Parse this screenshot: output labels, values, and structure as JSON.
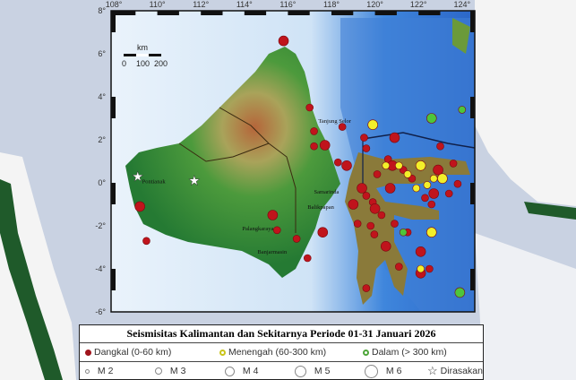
{
  "map": {
    "lon_ticks": [
      "108°",
      "110°",
      "112°",
      "114°",
      "116°",
      "118°",
      "120°",
      "122°",
      "124°"
    ],
    "lat_ticks": [
      "8°",
      "6°",
      "4°",
      "2°",
      "0°",
      "-2°",
      "-4°",
      "-6°"
    ],
    "scale_bar": {
      "unit": "km",
      "labels": [
        "0",
        "100",
        "200"
      ]
    },
    "colors": {
      "shallow": "#c0141c",
      "intermediate": "#f2ef2a",
      "deep": "#4ec53a",
      "sea": "#5b9be0",
      "land": "#2e8b3a"
    },
    "cities": [
      {
        "name": "Tanjung Selor",
        "lon": 117.4,
        "lat": 2.8
      },
      {
        "name": "Samarinda",
        "lon": 117.2,
        "lat": -0.5
      },
      {
        "name": "Balikpapan",
        "lon": 116.9,
        "lat": -1.2
      },
      {
        "name": "Palangkaraya",
        "lon": 113.9,
        "lat": -2.2
      },
      {
        "name": "Banjarmasin",
        "lon": 114.6,
        "lat": -3.3
      },
      {
        "name": "Pontianak",
        "lon": 109.3,
        "lat": -0.03
      }
    ],
    "events_shallow": [
      [
        115.8,
        6.6
      ],
      [
        117.2,
        2.4
      ],
      [
        117.2,
        1.7
      ],
      [
        117.7,
        1.75
      ],
      [
        118.5,
        2.6
      ],
      [
        119.5,
        2.1
      ],
      [
        120.9,
        2.1
      ],
      [
        123.0,
        1.7
      ],
      [
        118.3,
        0.95
      ],
      [
        118.7,
        0.8
      ],
      [
        119.6,
        1.6
      ],
      [
        120.6,
        1.1
      ],
      [
        120.8,
        0.8
      ],
      [
        121.3,
        0.6
      ],
      [
        122.1,
        0.75
      ],
      [
        122.9,
        0.6
      ],
      [
        123.6,
        0.9
      ],
      [
        120.1,
        0.4
      ],
      [
        119.4,
        -0.25
      ],
      [
        119.9,
        -0.9
      ],
      [
        120.3,
        -1.5
      ],
      [
        120.7,
        -0.25
      ],
      [
        121.7,
        0.2
      ],
      [
        122.3,
        -0.7
      ],
      [
        122.7,
        -0.5
      ],
      [
        123.4,
        -0.5
      ],
      [
        123.8,
        -0.05
      ],
      [
        119.0,
        -1.0
      ],
      [
        119.2,
        -1.9
      ],
      [
        119.97,
        -2.4
      ],
      [
        120.5,
        -2.95
      ],
      [
        120.9,
        -1.9
      ],
      [
        121.5,
        -2.3
      ],
      [
        122.1,
        -3.2
      ],
      [
        122.6,
        -1.0
      ],
      [
        121.1,
        -3.9
      ],
      [
        122.1,
        -4.2
      ],
      [
        122.5,
        -4.0
      ],
      [
        119.6,
        -4.9
      ],
      [
        117.6,
        -2.3
      ],
      [
        116.9,
        -3.5
      ],
      [
        116.4,
        -2.6
      ],
      [
        115.3,
        -1.5
      ],
      [
        115.5,
        -2.2
      ],
      [
        109.5,
        -2.7
      ],
      [
        109.2,
        -1.1
      ],
      [
        117.0,
        3.5
      ],
      [
        119.6,
        -0.6
      ],
      [
        120.0,
        -1.2
      ],
      [
        119.8,
        -2.0
      ]
    ],
    "events_intermediate": [
      [
        119.9,
        2.7
      ],
      [
        121.1,
        0.8
      ],
      [
        121.5,
        0.4
      ],
      [
        122.1,
        0.8
      ],
      [
        122.7,
        0.2
      ],
      [
        122.4,
        -0.1
      ],
      [
        123.1,
        0.2
      ],
      [
        121.9,
        -0.25
      ],
      [
        120.5,
        0.8
      ],
      [
        122.6,
        -2.3
      ],
      [
        122.1,
        -4.0
      ]
    ],
    "events_deep": [
      [
        122.6,
        3.0
      ],
      [
        124.0,
        3.4
      ],
      [
        121.3,
        -2.3
      ],
      [
        123.9,
        -5.1
      ]
    ],
    "felt": [
      [
        109.1,
        0.3
      ],
      [
        111.7,
        0.1
      ]
    ]
  },
  "legend": {
    "title": "Seismisitas Kalimantan dan Sekitarnya Periode 01-31 Januari 2026",
    "depth": [
      {
        "label": "Dangkal (0-60 km)",
        "color": "#c0141c"
      },
      {
        "label": "Menengah (60-300 km)",
        "color": "#f2ef2a"
      },
      {
        "label": "Dalam (> 300 km)",
        "color": "#4ec53a"
      }
    ],
    "magnitudes": [
      "M 2",
      "M 3",
      "M 4",
      "M 5",
      "M 6"
    ],
    "felt_label": "Dirasakan"
  }
}
